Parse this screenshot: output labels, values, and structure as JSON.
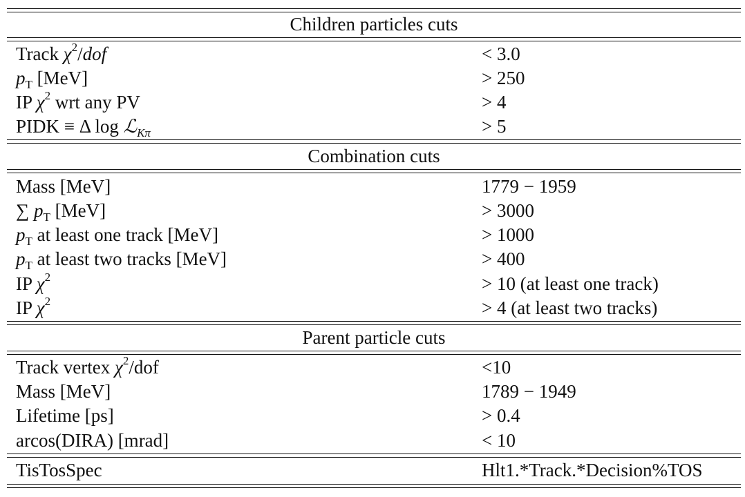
{
  "sections": [
    {
      "header": "Children particles cuts",
      "rows": [
        {
          "pre": "Track ",
          "var": "χ",
          "sup": "2",
          "post": "/",
          "postVar": "dof",
          "value": "< 3.0"
        },
        {
          "var": "p",
          "sub": "T",
          "post": " [MeV]",
          "value": "> 250"
        },
        {
          "pre": "IP ",
          "var": "χ",
          "sup": "2",
          "post": " wrt any PV",
          "value": "> 4"
        },
        {
          "pre": "PIDK ≡ Δ log ",
          "cal": "ℒ",
          "sub": "Kπ",
          "value": "> 5"
        }
      ]
    },
    {
      "header": "Combination cuts",
      "rows": [
        {
          "pre": "Mass [MeV]",
          "value": "1779 − 1959"
        },
        {
          "pre": "∑ ",
          "var": "p",
          "sub": "T",
          "post": " [MeV]",
          "value": "> 3000"
        },
        {
          "var": "p",
          "sub": "T",
          "post": " at least one track [MeV]",
          "value": "> 1000"
        },
        {
          "var": "p",
          "sub": "T",
          "post": " at least two tracks [MeV]",
          "value": "> 400"
        },
        {
          "pre": "IP ",
          "var": "χ",
          "sup": "2",
          "value": "> 10 (at least one track)"
        },
        {
          "pre": "IP ",
          "var": "χ",
          "sup": "2",
          "value": "> 4 (at least two tracks)"
        }
      ]
    },
    {
      "header": "Parent particle cuts",
      "rows": [
        {
          "pre": "Track vertex ",
          "var": "χ",
          "sup": "2",
          "post": "/dof",
          "value": "<10"
        },
        {
          "pre": "Mass [MeV]",
          "value": "1789 − 1949"
        },
        {
          "pre": "Lifetime [ps]",
          "value": "> 0.4"
        },
        {
          "pre": "arcos(DIRA) [mrad]",
          "value": "< 10"
        }
      ]
    },
    {
      "header": null,
      "rows": [
        {
          "pre": "TisTosSpec",
          "value": "Hlt1.*Track.*Decision%TOS"
        }
      ]
    }
  ]
}
